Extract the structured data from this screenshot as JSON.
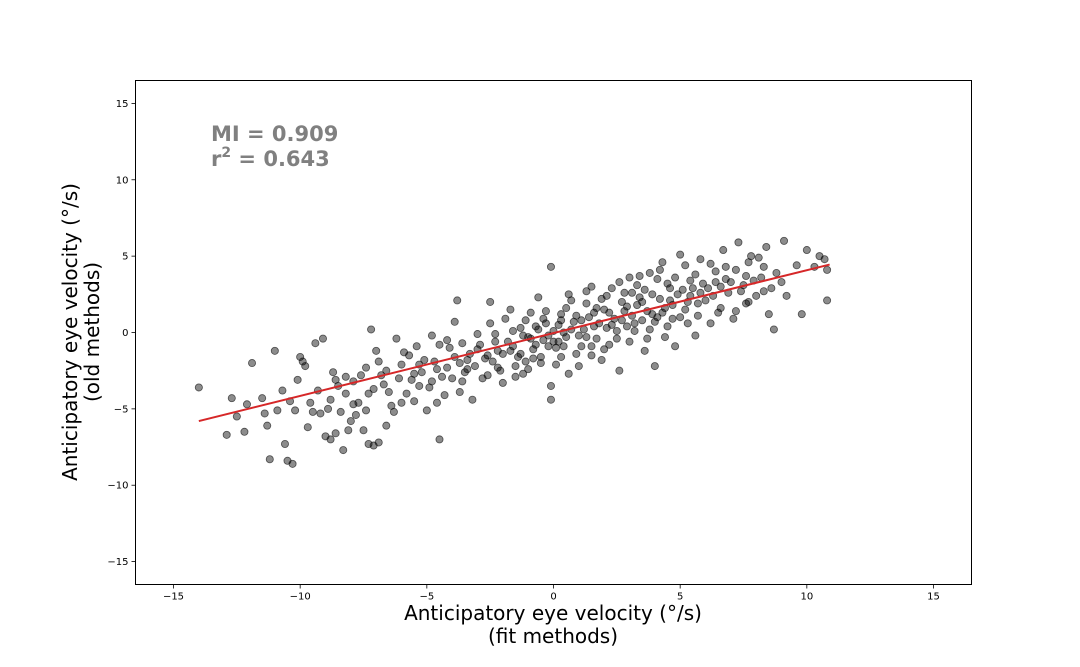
{
  "chart_data": {
    "type": "scatter",
    "xlabel_line1": "Anticipatory eye velocity (°/s)",
    "xlabel_line2": "(fit methods)",
    "ylabel_line1": "Anticipatory eye velocity (°/s)",
    "ylabel_line2": "(old methods)",
    "xlim": [
      -16.5,
      16.5
    ],
    "ylim": [
      -16.5,
      16.5
    ],
    "xticks": [
      -15,
      -10,
      -5,
      0,
      5,
      10,
      15
    ],
    "yticks": [
      -15,
      -10,
      -5,
      0,
      5,
      10,
      15
    ],
    "xtick_labels": [
      "−15",
      "−10",
      "−5",
      "0",
      "5",
      "10",
      "15"
    ],
    "ytick_labels": [
      "−15",
      "−10",
      "−5",
      "0",
      "5",
      "10",
      "15"
    ],
    "grid": false,
    "annotation": {
      "mi_label": "MI = 0.909",
      "r2_prefix": "r",
      "r2_exponent": "2",
      "r2_value": " = 0.643"
    },
    "scatter_series": {
      "marker_color": "#000000",
      "marker_alpha": 0.45,
      "points": [
        [
          -14.0,
          -3.6
        ],
        [
          -12.9,
          -6.7
        ],
        [
          -12.5,
          -5.5
        ],
        [
          -12.2,
          -6.5
        ],
        [
          -12.1,
          -4.7
        ],
        [
          -11.9,
          -2.0
        ],
        [
          -11.2,
          -8.3
        ],
        [
          -10.9,
          -5.1
        ],
        [
          -10.7,
          -3.8
        ],
        [
          -10.6,
          -7.3
        ],
        [
          -10.5,
          -8.4
        ],
        [
          -10.3,
          -8.6
        ],
        [
          -10.2,
          -5.1
        ],
        [
          -10.0,
          -1.6
        ],
        [
          -9.9,
          -1.9
        ],
        [
          -9.8,
          -2.2
        ],
        [
          -9.5,
          -5.2
        ],
        [
          -9.2,
          -5.3
        ],
        [
          -9.0,
          -6.8
        ],
        [
          -8.8,
          -7.0
        ],
        [
          -8.6,
          -6.6
        ],
        [
          -8.3,
          -7.7
        ],
        [
          -8.1,
          -6.4
        ],
        [
          -7.8,
          -5.4
        ],
        [
          -7.5,
          -6.4
        ],
        [
          -7.3,
          -7.3
        ],
        [
          -7.1,
          -7.4
        ],
        [
          -6.9,
          -7.2
        ],
        [
          -6.6,
          -6.1
        ],
        [
          -6.3,
          -5.2
        ],
        [
          -11.5,
          -4.3
        ],
        [
          -11.0,
          -1.2
        ],
        [
          -9.4,
          -0.7
        ],
        [
          -9.1,
          -0.4
        ],
        [
          -8.7,
          -2.6
        ],
        [
          -8.5,
          -3.5
        ],
        [
          -8.2,
          -4.0
        ],
        [
          -7.9,
          -3.2
        ],
        [
          -7.7,
          -4.6
        ],
        [
          -7.4,
          -2.3
        ],
        [
          -7.2,
          0.2
        ],
        [
          -7.0,
          -1.2
        ],
        [
          -6.8,
          -2.8
        ],
        [
          -6.5,
          -3.9
        ],
        [
          -6.2,
          -0.4
        ],
        [
          -6.0,
          -4.6
        ],
        [
          -5.7,
          -1.5
        ],
        [
          -5.5,
          -2.7
        ],
        [
          -5.3,
          -3.5
        ],
        [
          -5.0,
          -5.1
        ],
        [
          -4.8,
          -0.2
        ],
        [
          -4.6,
          -2.4
        ],
        [
          -4.5,
          -7.0
        ],
        [
          -4.3,
          -4.1
        ],
        [
          -4.1,
          -1.0
        ],
        [
          -3.9,
          0.7
        ],
        [
          -3.8,
          2.1
        ],
        [
          -3.6,
          -3.2
        ],
        [
          -3.4,
          -1.8
        ],
        [
          -3.2,
          -4.4
        ],
        [
          -3.0,
          -0.1
        ],
        [
          -2.8,
          -3.0
        ],
        [
          -2.6,
          -1.5
        ],
        [
          -2.5,
          2.0
        ],
        [
          -2.3,
          -0.6
        ],
        [
          -2.1,
          -2.5
        ],
        [
          -1.9,
          0.9
        ],
        [
          -1.7,
          -1.2
        ],
        [
          -1.5,
          -2.9
        ],
        [
          -1.3,
          0.3
        ],
        [
          -1.1,
          -1.9
        ],
        [
          -0.9,
          1.3
        ],
        [
          -0.7,
          -0.8
        ],
        [
          -0.5,
          -2.0
        ],
        [
          -0.3,
          0.6
        ],
        [
          -0.1,
          -3.5
        ],
        [
          -0.1,
          4.3
        ],
        [
          0.1,
          -1.0
        ],
        [
          -0.1,
          -4.4
        ],
        [
          0.3,
          1.2
        ],
        [
          0.5,
          -0.3
        ],
        [
          0.7,
          2.1
        ],
        [
          0.6,
          -2.7
        ],
        [
          0.9,
          -1.4
        ],
        [
          1.1,
          0.8
        ],
        [
          1.3,
          2.7
        ],
        [
          1.5,
          -0.9
        ],
        [
          1.7,
          1.6
        ],
        [
          1.9,
          -1.8
        ],
        [
          2.1,
          0.3
        ],
        [
          2.3,
          2.9
        ],
        [
          2.5,
          -0.4
        ],
        [
          2.6,
          -2.5
        ],
        [
          2.8,
          1.4
        ],
        [
          3.0,
          3.6
        ],
        [
          3.2,
          0.1
        ],
        [
          3.4,
          2.3
        ],
        [
          3.6,
          -1.2
        ],
        [
          3.8,
          3.9
        ],
        [
          4.0,
          -2.2
        ],
        [
          4.1,
          1.0
        ],
        [
          4.3,
          4.6
        ],
        [
          4.5,
          0.4
        ],
        [
          4.6,
          2.9
        ],
        [
          4.8,
          -0.9
        ],
        [
          5.0,
          5.1
        ],
        [
          5.2,
          1.5
        ],
        [
          5.4,
          3.4
        ],
        [
          5.6,
          -0.2
        ],
        [
          5.8,
          4.8
        ],
        [
          6.0,
          2.1
        ],
        [
          6.2,
          0.6
        ],
        [
          6.4,
          4.0
        ],
        [
          6.5,
          1.3
        ],
        [
          6.7,
          5.4
        ],
        [
          6.9,
          2.6
        ],
        [
          7.1,
          0.9
        ],
        [
          7.3,
          5.9
        ],
        [
          7.5,
          3.1
        ],
        [
          7.6,
          1.9
        ],
        [
          7.8,
          5.0
        ],
        [
          8.0,
          2.4
        ],
        [
          8.2,
          3.6
        ],
        [
          8.4,
          5.6
        ],
        [
          8.5,
          1.2
        ],
        [
          8.7,
          0.2
        ],
        [
          8.8,
          3.9
        ],
        [
          9.1,
          6.0
        ],
        [
          9.2,
          2.4
        ],
        [
          9.8,
          1.2
        ],
        [
          10.0,
          5.4
        ],
        [
          10.3,
          4.3
        ],
        [
          10.5,
          5.0
        ],
        [
          10.7,
          4.8
        ],
        [
          10.8,
          4.1
        ],
        [
          10.8,
          2.1
        ],
        [
          9.6,
          4.4
        ],
        [
          8.3,
          4.3
        ],
        [
          7.7,
          4.6
        ],
        [
          6.8,
          3.5
        ],
        [
          5.9,
          3.2
        ],
        [
          5.1,
          2.8
        ],
        [
          4.7,
          1.8
        ],
        [
          3.9,
          1.2
        ],
        [
          3.3,
          1.8
        ],
        [
          2.7,
          0.8
        ],
        [
          2.2,
          1.3
        ],
        [
          1.6,
          0.4
        ],
        [
          1.0,
          -0.2
        ],
        [
          0.4,
          0.0
        ],
        [
          -0.4,
          -0.5
        ],
        [
          -1.0,
          -0.3
        ],
        [
          -1.6,
          -0.9
        ],
        [
          -2.2,
          -1.2
        ],
        [
          -2.7,
          -1.7
        ],
        [
          -3.3,
          -1.4
        ],
        [
          -3.7,
          -2.0
        ],
        [
          -4.2,
          -2.3
        ],
        [
          -4.7,
          -1.9
        ],
        [
          -5.2,
          -2.6
        ],
        [
          -5.6,
          -3.1
        ],
        [
          -6.1,
          -3.0
        ],
        [
          -6.7,
          -3.4
        ],
        [
          -7.3,
          -4.0
        ],
        [
          -7.9,
          -4.7
        ],
        [
          -8.4,
          -5.2
        ],
        [
          -8.9,
          -5.0
        ],
        [
          -9.6,
          -4.6
        ],
        [
          -10.4,
          -4.5
        ],
        [
          -11.4,
          -5.3
        ],
        [
          -5.8,
          -4.0
        ],
        [
          -5.4,
          -0.9
        ],
        [
          -4.9,
          -3.6
        ],
        [
          -4.4,
          -2.9
        ],
        [
          -4.0,
          -3.0
        ],
        [
          -3.5,
          -2.6
        ],
        [
          -3.1,
          -2.2
        ],
        [
          -2.9,
          -0.8
        ],
        [
          -2.4,
          -1.9
        ],
        [
          -2.0,
          -1.4
        ],
        [
          -1.8,
          -0.6
        ],
        [
          -1.4,
          -1.6
        ],
        [
          -1.2,
          -0.2
        ],
        [
          -0.8,
          -1.1
        ],
        [
          -0.6,
          0.2
        ],
        [
          -0.2,
          -0.9
        ],
        [
          0.0,
          0.1
        ],
        [
          0.2,
          -0.6
        ],
        [
          0.8,
          0.7
        ],
        [
          1.2,
          0.2
        ],
        [
          1.4,
          1.0
        ],
        [
          1.8,
          0.6
        ],
        [
          2.0,
          1.5
        ],
        [
          2.4,
          0.9
        ],
        [
          2.9,
          1.7
        ],
        [
          3.1,
          1.1
        ],
        [
          3.5,
          2.0
        ],
        [
          3.7,
          1.4
        ],
        [
          4.2,
          2.2
        ],
        [
          4.4,
          1.6
        ],
        [
          4.9,
          2.5
        ],
        [
          5.3,
          2.0
        ],
        [
          5.5,
          2.9
        ],
        [
          5.7,
          1.9
        ],
        [
          6.1,
          2.9
        ],
        [
          6.3,
          2.4
        ],
        [
          6.6,
          3.0
        ],
        [
          7.0,
          3.3
        ],
        [
          7.4,
          2.7
        ],
        [
          7.9,
          3.4
        ],
        [
          -3.6,
          -0.7
        ],
        [
          -3.4,
          -2.4
        ],
        [
          -2.6,
          -2.8
        ],
        [
          -2.3,
          -0.1
        ],
        [
          -1.5,
          -2.2
        ],
        [
          -1.1,
          0.8
        ],
        [
          -0.5,
          -1.6
        ],
        [
          -0.3,
          1.4
        ],
        [
          0.3,
          -1.6
        ],
        [
          0.5,
          1.6
        ],
        [
          1.1,
          -0.9
        ],
        [
          1.3,
          1.9
        ],
        [
          1.7,
          -0.4
        ],
        [
          2.1,
          2.4
        ],
        [
          2.5,
          0.1
        ],
        [
          2.8,
          2.6
        ],
        [
          3.2,
          0.6
        ],
        [
          3.6,
          2.8
        ],
        [
          4.0,
          0.7
        ],
        [
          4.5,
          3.2
        ],
        [
          -4.5,
          -0.8
        ],
        [
          -4.8,
          -3.2
        ],
        [
          -5.1,
          -1.8
        ],
        [
          -5.5,
          -4.5
        ],
        [
          -6.0,
          -2.1
        ],
        [
          -6.4,
          -4.8
        ],
        [
          -6.9,
          -1.9
        ],
        [
          -7.6,
          -2.8
        ],
        [
          -8.0,
          -5.8
        ],
        [
          -8.6,
          -3.1
        ],
        [
          -9.3,
          -3.8
        ],
        [
          -9.7,
          -6.2
        ],
        [
          -10.1,
          -3.1
        ],
        [
          -11.3,
          -6.1
        ],
        [
          -12.7,
          -4.3
        ],
        [
          -2.5,
          0.6
        ],
        [
          -2.0,
          -3.3
        ],
        [
          -1.7,
          1.5
        ],
        [
          -1.0,
          -2.4
        ],
        [
          -0.6,
          2.3
        ],
        [
          0.1,
          -2.1
        ],
        [
          0.6,
          2.5
        ],
        [
          1.0,
          -2.2
        ],
        [
          1.5,
          3.0
        ],
        [
          2.0,
          -1.1
        ],
        [
          2.6,
          3.3
        ],
        [
          3.0,
          -0.6
        ],
        [
          3.4,
          3.7
        ],
        [
          3.8,
          0.2
        ],
        [
          4.2,
          4.1
        ],
        [
          4.7,
          0.9
        ],
        [
          5.2,
          4.4
        ],
        [
          5.7,
          1.1
        ],
        [
          6.2,
          4.5
        ],
        [
          6.6,
          1.6
        ],
        [
          7.2,
          4.1
        ],
        [
          7.7,
          2.0
        ],
        [
          8.1,
          4.9
        ],
        [
          8.6,
          2.9
        ],
        [
          9.0,
          3.3
        ],
        [
          -1.3,
          -1.4
        ],
        [
          -0.9,
          -0.4
        ],
        [
          -0.7,
          0.4
        ],
        [
          -0.2,
          -0.2
        ],
        [
          0.2,
          0.5
        ],
        [
          0.4,
          -0.9
        ],
        [
          0.7,
          0.2
        ],
        [
          0.9,
          1.1
        ],
        [
          1.3,
          -0.3
        ],
        [
          1.6,
          1.3
        ],
        [
          -3.9,
          -1.6
        ],
        [
          -3.0,
          -1.1
        ],
        [
          -2.2,
          -2.3
        ],
        [
          -1.6,
          0.1
        ],
        [
          -1.2,
          -2.7
        ],
        [
          2.3,
          0.5
        ],
        [
          2.7,
          2.0
        ],
        [
          3.1,
          2.6
        ],
        [
          3.5,
          0.8
        ],
        [
          3.9,
          2.5
        ],
        [
          4.3,
          1.3
        ],
        [
          4.6,
          2.1
        ],
        [
          5.0,
          1.0
        ],
        [
          5.4,
          2.4
        ],
        [
          5.8,
          2.6
        ],
        [
          -6.6,
          -2.5
        ],
        [
          -7.1,
          -3.7
        ],
        [
          -7.4,
          -5.1
        ],
        [
          -8.2,
          -2.9
        ],
        [
          -8.8,
          -4.4
        ],
        [
          -5.9,
          -1.3
        ],
        [
          -5.3,
          -2.1
        ],
        [
          -4.6,
          -4.6
        ],
        [
          -4.2,
          -0.5
        ],
        [
          -3.7,
          -3.9
        ],
        [
          0.0,
          -0.6
        ],
        [
          0.3,
          0.8
        ],
        [
          -0.4,
          0.9
        ],
        [
          -0.8,
          -1.7
        ],
        [
          1.5,
          -1.5
        ],
        [
          1.9,
          2.2
        ],
        [
          2.2,
          -0.8
        ],
        [
          2.9,
          0.4
        ],
        [
          3.3,
          3.1
        ],
        [
          3.7,
          -0.4
        ],
        [
          4.1,
          3.5
        ],
        [
          4.4,
          -0.3
        ],
        [
          4.8,
          3.6
        ],
        [
          5.3,
          0.6
        ],
        [
          5.6,
          3.8
        ],
        [
          6.4,
          3.3
        ],
        [
          6.8,
          4.3
        ],
        [
          7.2,
          1.4
        ],
        [
          7.6,
          3.7
        ],
        [
          8.3,
          2.7
        ]
      ]
    },
    "regression_line": {
      "color": "#d62728",
      "x": [
        -14.0,
        10.9
      ],
      "y": [
        -5.8,
        4.45
      ]
    }
  }
}
